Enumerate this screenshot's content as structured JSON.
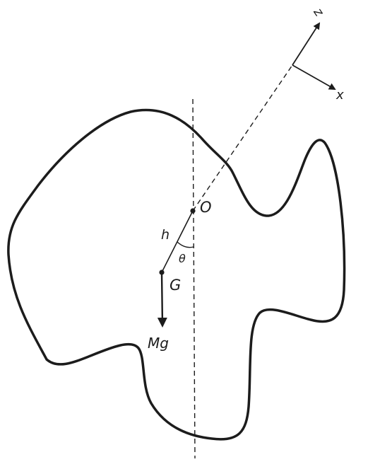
{
  "labels": {
    "pivot": "O",
    "center_of_mass": "G",
    "distance": "h",
    "angle": "θ",
    "weight": "Mg",
    "axis_z": "z",
    "axis_x": "x"
  },
  "colors": {
    "ink": "#1c1c1c",
    "background": "#ffffff"
  }
}
